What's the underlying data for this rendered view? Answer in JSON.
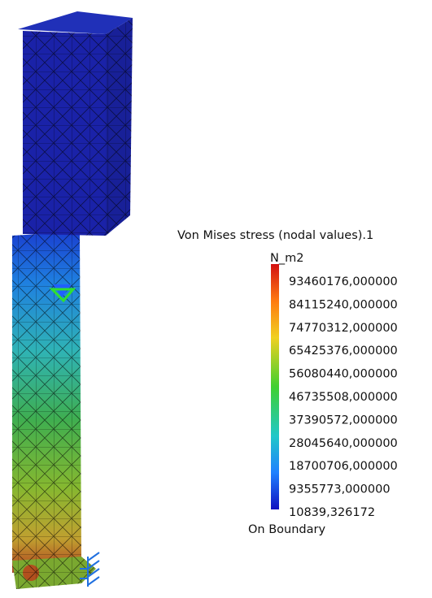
{
  "legend": {
    "title": "Von Mises stress (nodal values).1",
    "unit": "N_m2",
    "labels": [
      "93460176,000000",
      "84115240,000000",
      "74770312,000000",
      "65425376,000000",
      "56080440,000000",
      "46735508,000000",
      "37390572,000000",
      "28045640,000000",
      "18700706,000000",
      "9355773,000000",
      "10839,326172"
    ],
    "footer": "On Boundary"
  }
}
